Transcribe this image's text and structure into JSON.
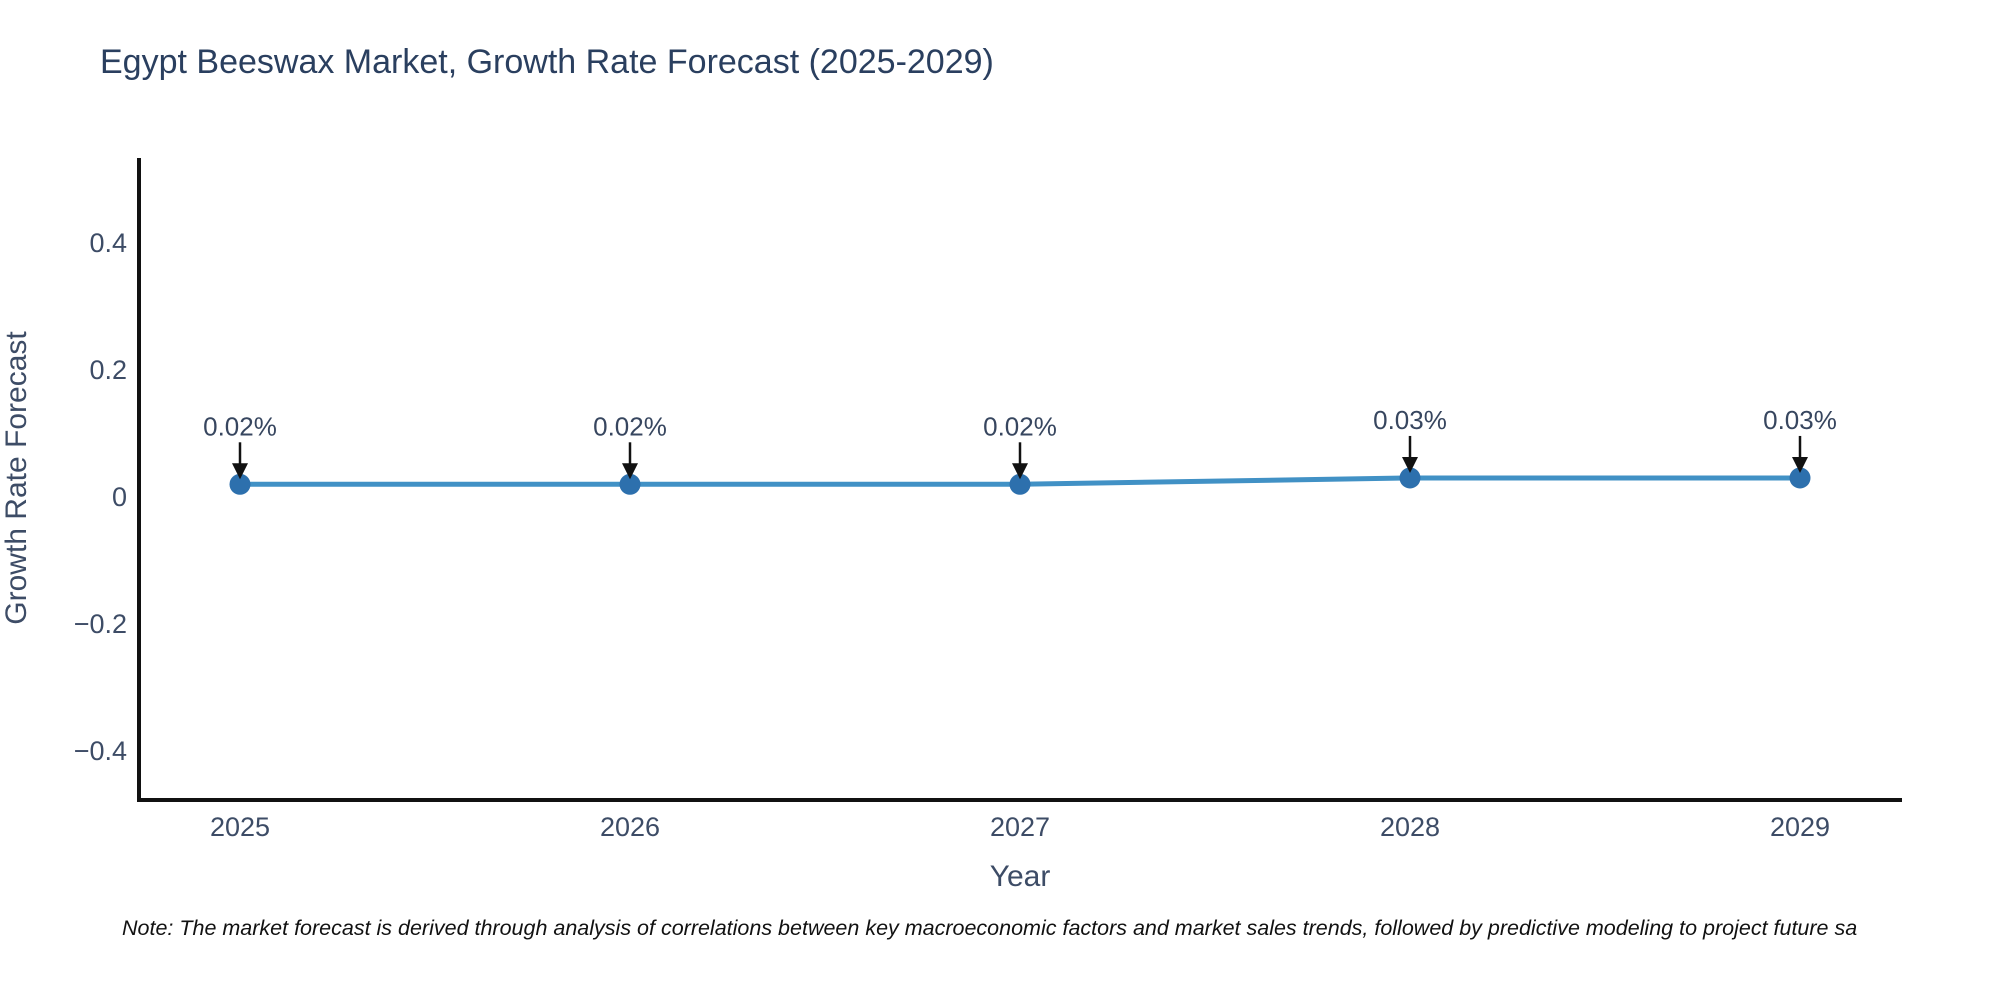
{
  "note": "Note: The market forecast is derived through analysis of correlations between key macroeconomic factors and market sales trends, followed by predictive modeling to project future sa",
  "chart_data": {
    "type": "line",
    "title": "Egypt Beeswax Market, Growth Rate Forecast (2025-2029)",
    "xlabel": "Year",
    "ylabel": "Growth Rate Forecast",
    "categories": [
      "2025",
      "2026",
      "2027",
      "2028",
      "2029"
    ],
    "series": [
      {
        "name": "Growth Rate Forecast",
        "values": [
          0.02,
          0.02,
          0.02,
          0.03,
          0.03
        ],
        "point_labels": [
          "0.02%",
          "0.02%",
          "0.02%",
          "0.03%",
          "0.03%"
        ]
      }
    ],
    "yticks": [
      0.4,
      0.2,
      0,
      -0.2,
      -0.4
    ],
    "ytick_labels": [
      "0.4",
      "0.2",
      "0",
      "−0.2",
      "−0.4"
    ],
    "ylim": [
      -0.477,
      0.531
    ],
    "grid": false,
    "legend": "none",
    "colors": {
      "line": "#4191c5",
      "marker": "#2d70ad",
      "axis": "#111111",
      "arrow": "#111111",
      "title_text": "#2a3f5f",
      "tick_text": "#3d4c66",
      "annotation_text": "#37465f"
    }
  }
}
